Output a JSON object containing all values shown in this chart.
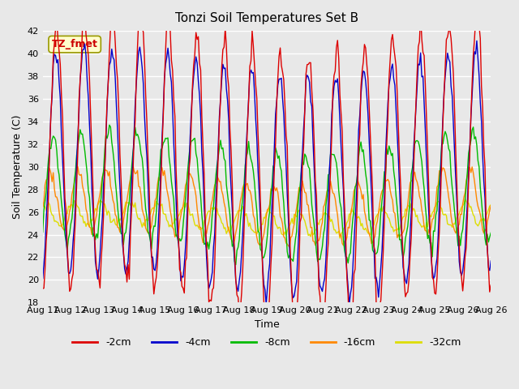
{
  "title": "Tonzi Soil Temperatures Set B",
  "xlabel": "Time",
  "ylabel": "Soil Temperature (C)",
  "ylim": [
    18,
    42
  ],
  "yticks": [
    18,
    20,
    22,
    24,
    26,
    28,
    30,
    32,
    34,
    36,
    38,
    40,
    42
  ],
  "colors": {
    "-2cm": "#dd0000",
    "-4cm": "#0000cc",
    "-8cm": "#00bb00",
    "-16cm": "#ff8800",
    "-32cm": "#dddd00"
  },
  "legend_labels": [
    "-2cm",
    "-4cm",
    "-8cm",
    "-16cm",
    "-32cm"
  ],
  "xtick_labels": [
    "Aug 11",
    "Aug 12",
    "Aug 13",
    "Aug 14",
    "Aug 15",
    "Aug 16",
    "Aug 17",
    "Aug 18",
    "Aug 19",
    "Aug 20",
    "Aug 21",
    "Aug 22",
    "Aug 23",
    "Aug 24",
    "Aug 25",
    "Aug 26"
  ],
  "annotation_text": "TZ_fmet",
  "annotation_color": "#cc0000",
  "annotation_bg": "#ffffcc",
  "annotation_border": "#999900",
  "background_color": "#e8e8e8",
  "plot_bg": "#e8e8e8",
  "grid_color": "#ffffff",
  "n_days": 16
}
